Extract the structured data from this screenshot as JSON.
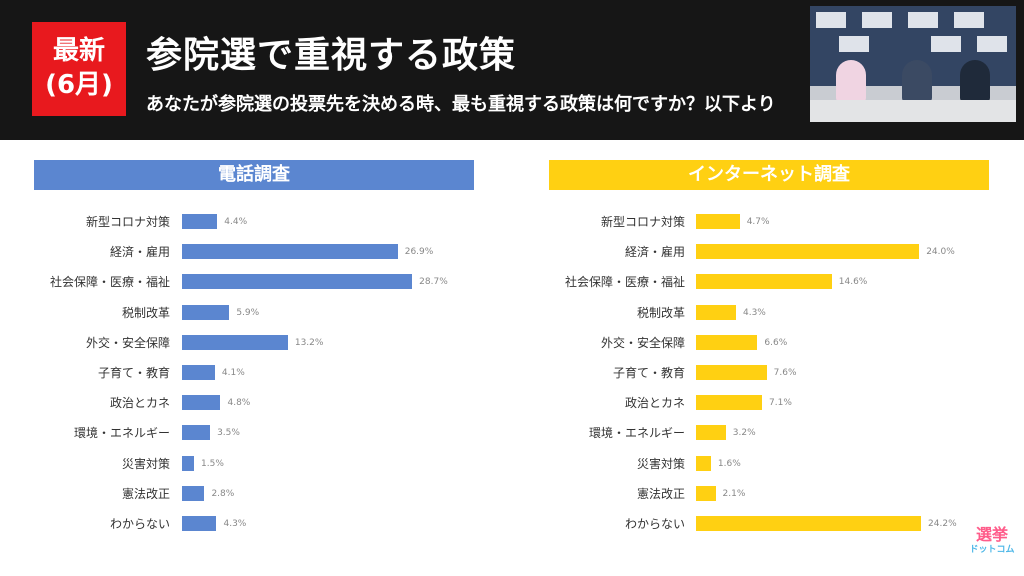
{
  "header": {
    "badge_line1": "最新",
    "badge_line2": "(6月)",
    "title": "参院選で重視する政策",
    "subtitle": "あなたが参院選の投票先を決める時、最も重視する政策は何ですか？以下より"
  },
  "logo": {
    "line1": "選挙",
    "line2": "ドットコム"
  },
  "colors": {
    "phone": "#5b86d0",
    "internet": "#ffd012",
    "header_bg": "#161616",
    "badge": "#e8191e"
  },
  "chart_data": [
    {
      "type": "bar",
      "orientation": "horizontal",
      "title": "電話調査",
      "categories": [
        "新型コロナ対策",
        "経済・雇用",
        "社会保障・医療・福祉",
        "税制改革",
        "外交・安全保障",
        "子育て・教育",
        "政治とカネ",
        "環境・エネルギー",
        "災害対策",
        "憲法改正",
        "わからない"
      ],
      "values": [
        4.4,
        26.9,
        28.7,
        5.9,
        13.2,
        4.1,
        4.8,
        3.5,
        1.5,
        2.8,
        4.3
      ],
      "value_labels": [
        "4.4%",
        "26.9%",
        "28.7%",
        "5.9%",
        "13.2%",
        "4.1%",
        "4.8%",
        "3.5%",
        "1.5%",
        "2.8%",
        "4.3%"
      ],
      "unit": "%"
    },
    {
      "type": "bar",
      "orientation": "horizontal",
      "title": "インターネット調査",
      "categories": [
        "新型コロナ対策",
        "経済・雇用",
        "社会保障・医療・福祉",
        "税制改革",
        "外交・安全保障",
        "子育て・教育",
        "政治とカネ",
        "環境・エネルギー",
        "災害対策",
        "憲法改正",
        "わからない"
      ],
      "values": [
        4.7,
        24.0,
        14.6,
        4.3,
        6.6,
        7.6,
        7.1,
        3.2,
        1.6,
        2.1,
        24.2
      ],
      "value_labels": [
        "4.7%",
        "24.0%",
        "14.6%",
        "4.3%",
        "6.6%",
        "7.6%",
        "7.1%",
        "3.2%",
        "1.6%",
        "2.1%",
        "24.2%"
      ],
      "unit": "%"
    }
  ]
}
